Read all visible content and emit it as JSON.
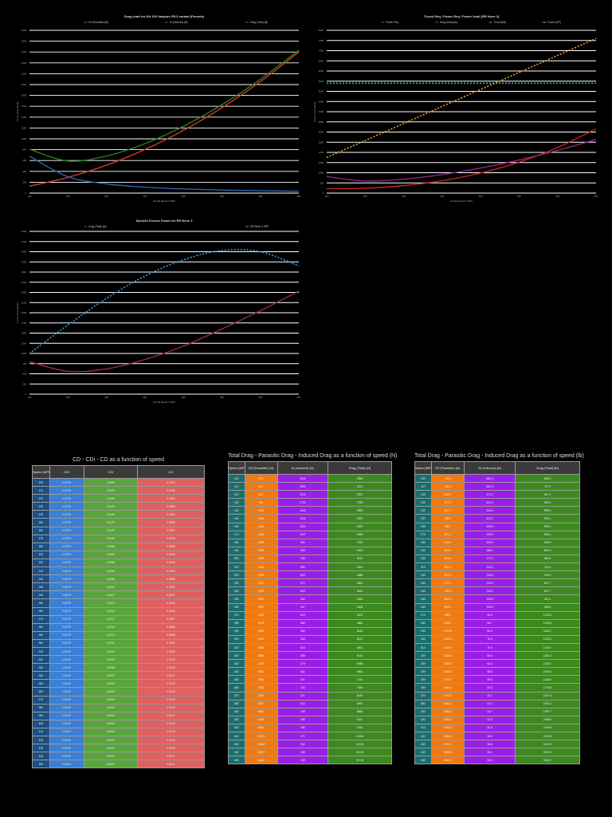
{
  "colors": {
    "bg": "#000000",
    "grid": "#ffffff"
  },
  "chart_data": [
    {
      "type": "line",
      "title": "Drag chart for DH.100 Vampire FB.5 variant (Pounds)",
      "xlabel": "Aircraft Speed in MPH",
      "ylabel": "Force in Pounds (lb)",
      "x": [
        100,
        150,
        200,
        250,
        300,
        350,
        400,
        450
      ],
      "ylim": [
        0,
        3000
      ],
      "ytick_step": 200,
      "grid": true,
      "legend": "top",
      "series": [
        {
          "name": "D0 (Parasitic) (lb)",
          "color": "#e03a2a",
          "dash": false,
          "values": [
            128,
            289,
            514,
            803,
            1156,
            1573,
            2054,
            2600
          ]
        },
        {
          "name": "Di (Induced) (lb)",
          "color": "#2a6ab0",
          "dash": false,
          "values": [
            680,
            302,
            170,
            109,
            76,
            56,
            43,
            34
          ]
        },
        {
          "name": "Drag (Total) (lb)",
          "color": "#2f8a20",
          "dash": false,
          "values": [
            808,
            591,
            684,
            911,
            1231,
            1628,
            2097,
            2634
          ]
        }
      ]
    },
    {
      "type": "line",
      "title": "Thrust Req / Power Req / Power Avail (RR Nene 3)",
      "xlabel": "Aircraft Speed in MPH",
      "ylabel": "Force in Pounds (lb)",
      "x": [
        100,
        150,
        200,
        250,
        300,
        350,
        400,
        450
      ],
      "ylim": [
        0,
        8000
      ],
      "ytick_step": 500,
      "grid": true,
      "legend": "top",
      "series": [
        {
          "name": "Power Req",
          "color": "#d0281e",
          "dash": false,
          "values": [
            215,
            236,
            365,
            607,
            985,
            1520,
            2237,
            3160
          ]
        },
        {
          "name": "Drag (Total) (lb)",
          "color": "#9a2a8a",
          "dash": false,
          "values": [
            808,
            591,
            684,
            911,
            1231,
            1628,
            2097,
            2634
          ]
        },
        {
          "name": "Thrust (lbf)",
          "color": "#20b8b0",
          "dash": true,
          "values": [
            5400,
            5400,
            5400,
            5400,
            5400,
            5400,
            5400,
            5400
          ]
        },
        {
          "name": "Power (HP)",
          "color": "#e8a030",
          "dash": true,
          "values": [
            1750,
            2586,
            3421,
            4257,
            5093,
            5929,
            6764,
            7600
          ]
        }
      ]
    },
    {
      "type": "line",
      "title": "Specific Excess Power for RR Nene 3",
      "xlabel": "Aircraft Speed in MPH",
      "ylabel": "Force in Pounds (lb)",
      "x": [
        100,
        150,
        200,
        250,
        300,
        350,
        400,
        450
      ],
      "ylim": [
        0,
        4000
      ],
      "ytick_step": 250,
      "grid": true,
      "legend": "top",
      "series": [
        {
          "name": "Drag (Total) (lb)",
          "color": "#a02a60",
          "dash": false,
          "values": [
            800,
            560,
            620,
            850,
            1180,
            1600,
            2050,
            2530
          ]
        },
        {
          "name": "RR Nene 3 SEP",
          "color": "#3aa0e0",
          "dash": true,
          "values": [
            1000,
            1700,
            2350,
            2900,
            3300,
            3530,
            3500,
            3150
          ]
        }
      ]
    }
  ],
  "tables": [
    {
      "title": "CD - CDi - CD as a function of speed",
      "headers": [
        "Speed (MPH)",
        "CD0",
        "CDi",
        "CD"
      ],
      "colors": [
        "#1d4f80",
        "#3a7fd5",
        "#5aa43c",
        "#e06060"
      ],
      "rows": [
        [
          "100",
          "0.0170",
          "0.0900",
          "0.1070"
        ],
        [
          "110",
          "0.0170",
          "0.0615",
          "0.0785"
        ],
        [
          "120",
          "0.0170",
          "0.0434",
          "0.0604"
        ],
        [
          "130",
          "0.0170",
          "0.0315",
          "0.0485"
        ],
        [
          "140",
          "0.0170",
          "0.0234",
          "0.0404"
        ],
        [
          "150",
          "0.0170",
          "0.0178",
          "0.0348"
        ],
        [
          "160",
          "0.0170",
          "0.0137",
          "0.0307"
        ],
        [
          "170",
          "0.0170",
          "0.0108",
          "0.0278"
        ],
        [
          "180",
          "0.0170",
          "0.0086",
          "0.0256"
        ],
        [
          "190",
          "0.0170",
          "0.0069",
          "0.0239"
        ],
        [
          "200",
          "0.0170",
          "0.0056",
          "0.0226"
        ],
        [
          "210",
          "0.0170",
          "0.0046",
          "0.0216"
        ],
        [
          "220",
          "0.0170",
          "0.0038",
          "0.0208"
        ],
        [
          "230",
          "0.0170",
          "0.0032",
          "0.0202"
        ],
        [
          "240",
          "0.0170",
          "0.0027",
          "0.0197"
        ],
        [
          "250",
          "0.0170",
          "0.0023",
          "0.0193"
        ],
        [
          "260",
          "0.0170",
          "0.0020",
          "0.0190"
        ],
        [
          "270",
          "0.0170",
          "0.0017",
          "0.0187"
        ],
        [
          "280",
          "0.0170",
          "0.0015",
          "0.0185"
        ],
        [
          "290",
          "0.0170",
          "0.0013",
          "0.0183"
        ],
        [
          "300",
          "0.0170",
          "0.0011",
          "0.0181"
        ],
        [
          "310",
          "0.0170",
          "0.0010",
          "0.0180"
        ],
        [
          "320",
          "0.0170",
          "0.0009",
          "0.0179"
        ],
        [
          "330",
          "0.0170",
          "0.0008",
          "0.0178"
        ],
        [
          "340",
          "0.0170",
          "0.0007",
          "0.0177"
        ],
        [
          "350",
          "0.0170",
          "0.0006",
          "0.0176"
        ],
        [
          "360",
          "0.0170",
          "0.0005",
          "0.0175"
        ],
        [
          "370",
          "0.0170",
          "0.0005",
          "0.0175"
        ],
        [
          "380",
          "0.0170",
          "0.0004",
          "0.0174"
        ],
        [
          "390",
          "0.0170",
          "0.0004",
          "0.0174"
        ],
        [
          "400",
          "0.0170",
          "0.0004",
          "0.0174"
        ],
        [
          "410",
          "0.0170",
          "0.0003",
          "0.0173"
        ],
        [
          "420",
          "0.0170",
          "0.0003",
          "0.0173"
        ],
        [
          "430",
          "0.0170",
          "0.0003",
          "0.0173"
        ],
        [
          "440",
          "0.0170",
          "0.0002",
          "0.0172"
        ],
        [
          "450",
          "0.0170",
          "0.0002",
          "0.0172"
        ]
      ]
    },
    {
      "title": "Total Drag - Parasitic Drag - Induced Drag as a function of speed (N)",
      "headers": [
        "Speed (MPH)",
        "D0 (Parasitic) (N)",
        "Di (Induced) (N)",
        "Drag (Total) (N)"
      ],
      "colors": [
        "#1b6e6e",
        "#f07a10",
        "#9a1fe6",
        "#3c8a1e"
      ],
      "rows": [
        [
          "100",
          "571",
          "3025",
          "3596"
        ],
        [
          "110",
          "691",
          "2500",
          "3191"
        ],
        [
          "120",
          "822",
          "2100",
          "2922"
        ],
        [
          "130",
          "965",
          "1790",
          "2755"
        ],
        [
          "140",
          "1120",
          "1543",
          "2663"
        ],
        [
          "150",
          "1285",
          "1344",
          "2629"
        ],
        [
          "160",
          "1462",
          "1181",
          "2643"
        ],
        [
          "170",
          "1651",
          "1047",
          "2698"
        ],
        [
          "180",
          "1850",
          "934",
          "2784"
        ],
        [
          "190",
          "2062",
          "838",
          "2900"
        ],
        [
          "200",
          "2285",
          "756",
          "3041"
        ],
        [
          "210",
          "2518",
          "686",
          "3204"
        ],
        [
          "220",
          "2764",
          "625",
          "3389"
        ],
        [
          "230",
          "3021",
          "572",
          "3593"
        ],
        [
          "240",
          "3290",
          "525",
          "3815"
        ],
        [
          "250",
          "3570",
          "484",
          "4054"
        ],
        [
          "260",
          "3861",
          "447",
          "4308"
        ],
        [
          "270",
          "4163",
          "415",
          "4578"
        ],
        [
          "280",
          "4478",
          "386",
          "4864"
        ],
        [
          "290",
          "4803",
          "360",
          "5163"
        ],
        [
          "300",
          "5140",
          "336",
          "5476"
        ],
        [
          "310",
          "5488",
          "315",
          "5803"
        ],
        [
          "320",
          "5848",
          "295",
          "6143"
        ],
        [
          "330",
          "6220",
          "278",
          "6498"
        ],
        [
          "340",
          "6602",
          "262",
          "6864"
        ],
        [
          "350",
          "6996",
          "247",
          "7243"
        ],
        [
          "360",
          "7402",
          "234",
          "7636"
        ],
        [
          "370",
          "7819",
          "221",
          "8040"
        ],
        [
          "380",
          "8247",
          "210",
          "8457"
        ],
        [
          "390",
          "8687",
          "199",
          "8886"
        ],
        [
          "400",
          "9138",
          "189",
          "9327"
        ],
        [
          "410",
          "9601",
          "180",
          "9781"
        ],
        [
          "420",
          "10075",
          "171",
          "10246"
        ],
        [
          "430",
          "10560",
          "164",
          "10724"
        ],
        [
          "440",
          "11057",
          "156",
          "11213"
        ],
        [
          "450",
          "11565",
          "149",
          "11714"
        ]
      ]
    },
    {
      "title": "Total Drag - Parasitic Drag - Induced Drag as a function of speed (lb)",
      "headers": [
        "Speed (MPH)",
        "D0 (Parasitic) (lb)",
        "Di (Induced) (lb)",
        "Drag (Total) (lb)"
      ],
      "colors": [
        "#1b6e6e",
        "#f07a10",
        "#9a1fe6",
        "#3c8a1e"
      ],
      "rows": [
        [
          "100",
          "128.4",
          "680.0",
          "808.4"
        ],
        [
          "110",
          "155.4",
          "562.0",
          "717.4"
        ],
        [
          "120",
          "184.9",
          "472.2",
          "657.1"
        ],
        [
          "130",
          "217.0",
          "402.4",
          "619.4"
        ],
        [
          "140",
          "251.7",
          "346.9",
          "598.6"
        ],
        [
          "150",
          "288.9",
          "302.2",
          "591.1"
        ],
        [
          "160",
          "328.7",
          "265.6",
          "594.3"
        ],
        [
          "170",
          "371.1",
          "235.3",
          "606.4"
        ],
        [
          "180",
          "416.0",
          "209.9",
          "625.9"
        ],
        [
          "190",
          "463.5",
          "188.4",
          "651.9"
        ],
        [
          "200",
          "513.6",
          "170.0",
          "683.6"
        ],
        [
          "210",
          "566.2",
          "154.2",
          "720.4"
        ],
        [
          "220",
          "621.5",
          "140.5",
          "762.0"
        ],
        [
          "230",
          "679.2",
          "128.5",
          "807.7"
        ],
        [
          "240",
          "739.6",
          "118.1",
          "857.7"
        ],
        [
          "250",
          "802.5",
          "108.8",
          "911.3"
        ],
        [
          "260",
          "868.0",
          "100.6",
          "968.6"
        ],
        [
          "270",
          "936.0",
          "93.3",
          "1029.3"
        ],
        [
          "280",
          "1006.7",
          "86.7",
          "1093.4"
        ],
        [
          "290",
          "1079.8",
          "80.9",
          "1160.7"
        ],
        [
          "300",
          "1155.6",
          "75.6",
          "1231.2"
        ],
        [
          "310",
          "1233.9",
          "70.8",
          "1304.7"
        ],
        [
          "320",
          "1314.8",
          "66.4",
          "1381.2"
        ],
        [
          "330",
          "1398.3",
          "62.4",
          "1460.7"
        ],
        [
          "340",
          "1484.3",
          "58.8",
          "1543.1"
        ],
        [
          "350",
          "1572.9",
          "55.5",
          "1628.4"
        ],
        [
          "360",
          "1664.1",
          "52.5",
          "1716.6"
        ],
        [
          "370",
          "1757.8",
          "49.7",
          "1807.5"
        ],
        [
          "380",
          "1854.1",
          "47.1",
          "1901.2"
        ],
        [
          "390",
          "1953.0",
          "44.7",
          "1997.7"
        ],
        [
          "400",
          "2054.4",
          "42.5",
          "2096.9"
        ],
        [
          "410",
          "2158.4",
          "40.5",
          "2198.9"
        ],
        [
          "420",
          "2265.0",
          "38.5",
          "2303.5"
        ],
        [
          "430",
          "2374.1",
          "36.8",
          "2410.9"
        ],
        [
          "440",
          "2485.8",
          "35.1",
          "2520.9"
        ],
        [
          "450",
          "2600.1",
          "33.6",
          "2633.7"
        ]
      ]
    }
  ]
}
